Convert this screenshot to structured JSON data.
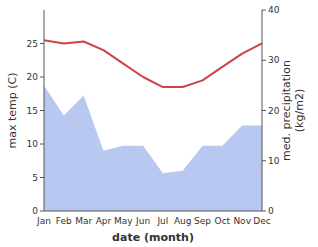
{
  "chart_data": {
    "type": "line",
    "categories": [
      "Jan",
      "Feb",
      "Mar",
      "Apr",
      "May",
      "Jun",
      "Jul",
      "Aug",
      "Sep",
      "Oct",
      "Nov",
      "Dec"
    ],
    "xlabel": "date (month)",
    "ylabel": "max temp (C)",
    "y2label": "med. precipitation\n(kg/m2)",
    "ylim": [
      0,
      30
    ],
    "yticks": [
      0,
      5,
      10,
      15,
      20,
      25
    ],
    "y2lim": [
      0,
      40
    ],
    "y2ticks": [
      0,
      10,
      20,
      30,
      40
    ],
    "series": [
      {
        "type": "line",
        "color": "#cc4444",
        "values": [
          25.5,
          25.0,
          25.3,
          24.0,
          22.0,
          20.0,
          18.5,
          18.5,
          19.5,
          21.5,
          23.5,
          25.0
        ]
      },
      {
        "type": "area",
        "axis": "y2",
        "color": "#b8c8f0",
        "values": [
          25.0,
          19.0,
          23.0,
          12.0,
          13.0,
          13.0,
          7.5,
          8.0,
          13.0,
          13.0,
          17.0,
          17.0
        ]
      }
    ]
  }
}
